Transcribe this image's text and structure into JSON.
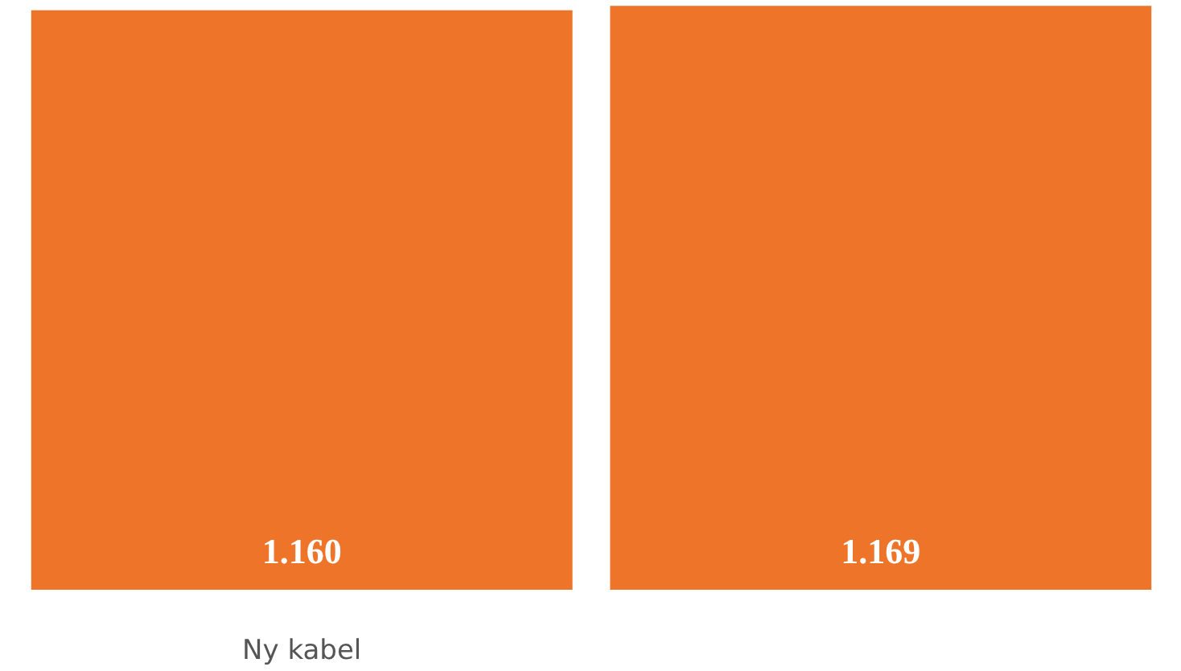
{
  "chart_data": {
    "type": "bar",
    "categories": [
      "Ny kabel",
      null
    ],
    "values": [
      1160,
      1169
    ],
    "value_labels": [
      "1.160",
      "1.169"
    ],
    "color": "#ee7429"
  }
}
